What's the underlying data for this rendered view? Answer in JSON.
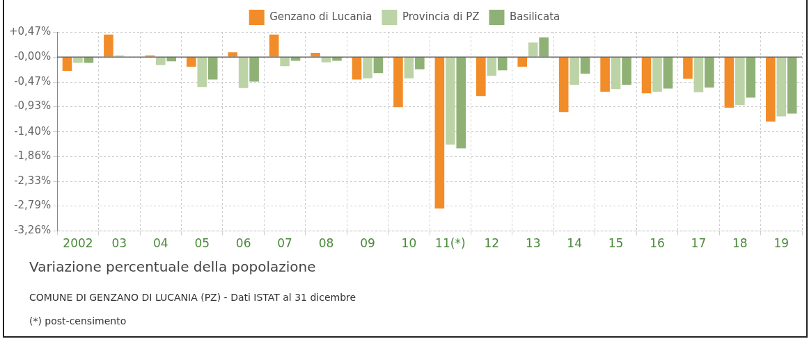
{
  "chart_data": {
    "type": "bar",
    "title": "Variazione percentuale della popolazione",
    "subtitle": "COMUNE DI GENZANO DI LUCANIA (PZ) - Dati ISTAT al 31 dicembre",
    "annotations": [
      "(*) post-censimento"
    ],
    "categories": [
      "2002",
      "03",
      "04",
      "05",
      "06",
      "07",
      "08",
      "09",
      "10",
      "11(*)",
      "12",
      "13",
      "14",
      "15",
      "16",
      "17",
      "18",
      "19"
    ],
    "series": [
      {
        "name": "Genzano di Lucania",
        "color": "#f28c28",
        "values": [
          -0.26,
          0.42,
          0.03,
          -0.18,
          0.09,
          0.42,
          0.08,
          -0.42,
          -0.94,
          -2.84,
          -0.73,
          -0.18,
          -1.03,
          -0.65,
          -0.68,
          -0.41,
          -0.95,
          -1.21
        ]
      },
      {
        "name": "Provincia di PZ",
        "color": "#bcd3a6",
        "values": [
          -0.11,
          0.03,
          -0.15,
          -0.56,
          -0.58,
          -0.17,
          -0.1,
          -0.4,
          -0.4,
          -1.64,
          -0.35,
          0.27,
          -0.52,
          -0.6,
          -0.65,
          -0.66,
          -0.9,
          -1.11
        ]
      },
      {
        "name": "Basilicata",
        "color": "#8fb176",
        "values": [
          -0.11,
          null,
          -0.08,
          -0.42,
          -0.46,
          -0.07,
          -0.07,
          -0.3,
          -0.23,
          -1.71,
          -0.25,
          0.37,
          -0.31,
          -0.52,
          -0.59,
          -0.57,
          -0.76,
          -1.06
        ]
      }
    ],
    "ylim": [
      -3.26,
      0.47
    ],
    "yticks": [
      {
        "value": 0.47,
        "label": "+0,47%"
      },
      {
        "value": 0,
        "label": "-0,00%"
      },
      {
        "value": -0.47,
        "label": "-0,47%"
      },
      {
        "value": -0.93,
        "label": "-0,93%"
      },
      {
        "value": -1.4,
        "label": "-1,40%"
      },
      {
        "value": -1.86,
        "label": "-1,86%"
      },
      {
        "value": -2.33,
        "label": "-2,33%"
      },
      {
        "value": -2.79,
        "label": "-2,79%"
      },
      {
        "value": -3.26,
        "label": "-3,26%"
      }
    ],
    "ref_lines": [
      {
        "axis": "y",
        "value": 0,
        "color": "#555555"
      }
    ],
    "grid": true,
    "legend": "top"
  }
}
